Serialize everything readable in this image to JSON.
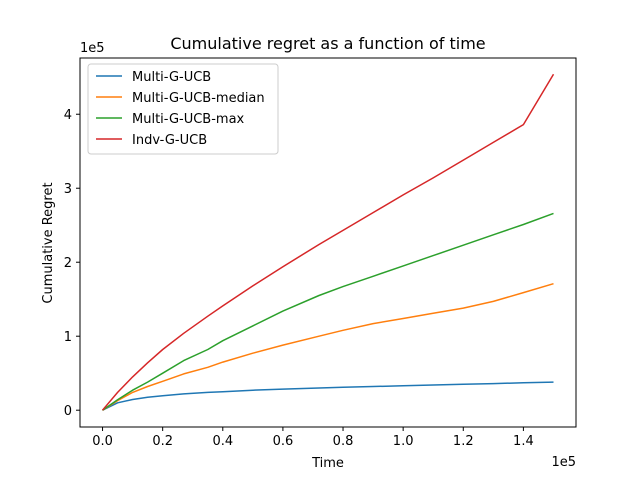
{
  "chart_data": {
    "type": "line",
    "title": "Cumulative regret as a function of time",
    "xlabel": "Time",
    "ylabel": "Cumulative Regret",
    "x_scale_label": "1e5",
    "y_scale_label": "1e5",
    "x_ticks": [
      0,
      20000,
      40000,
      60000,
      80000,
      100000,
      120000,
      140000
    ],
    "x_tick_labels": [
      "0.0",
      "0.2",
      "0.4",
      "0.6",
      "0.8",
      "1.0",
      "1.2",
      "1.4"
    ],
    "y_ticks": [
      0,
      100000,
      200000,
      300000,
      400000
    ],
    "y_tick_labels": [
      "0",
      "1",
      "2",
      "3",
      "4"
    ],
    "xlim": [
      -7500,
      157500
    ],
    "ylim": [
      -22700,
      476000
    ],
    "grid": false,
    "legend_position": "top-left",
    "x": [
      0,
      5000,
      10000,
      15000,
      20000,
      27000,
      35000,
      40000,
      50000,
      60000,
      72000,
      80000,
      90000,
      100000,
      110000,
      120000,
      130000,
      140000,
      150000
    ],
    "series": [
      {
        "name": "Multi-G-UCB",
        "color": "#1f77b4",
        "values": [
          0,
          10000,
          14500,
          17500,
          19500,
          22000,
          24000,
          25000,
          27000,
          28500,
          30000,
          31000,
          32000,
          33000,
          34000,
          35000,
          36000,
          37000,
          38000
        ]
      },
      {
        "name": "Multi-G-UCB-median",
        "color": "#ff7f0e",
        "values": [
          0,
          13000,
          24000,
          32000,
          39000,
          49000,
          58000,
          65000,
          77000,
          88000,
          100000,
          108000,
          117000,
          124000,
          131000,
          138000,
          147000,
          159000,
          171000
        ]
      },
      {
        "name": "Multi-G-UCB-max",
        "color": "#2ca02c",
        "values": [
          0,
          14000,
          27000,
          38000,
          50000,
          67000,
          82000,
          94000,
          114000,
          134000,
          155000,
          167000,
          181000,
          195000,
          209000,
          223000,
          237000,
          251000,
          266000
        ]
      },
      {
        "name": "Indv-G-UCB",
        "color": "#d62728",
        "values": [
          0,
          24000,
          45000,
          64000,
          82000,
          104000,
          127000,
          141000,
          168000,
          194000,
          224000,
          243000,
          267000,
          291000,
          314000,
          338000,
          362000,
          386000,
          454000
        ]
      }
    ]
  }
}
